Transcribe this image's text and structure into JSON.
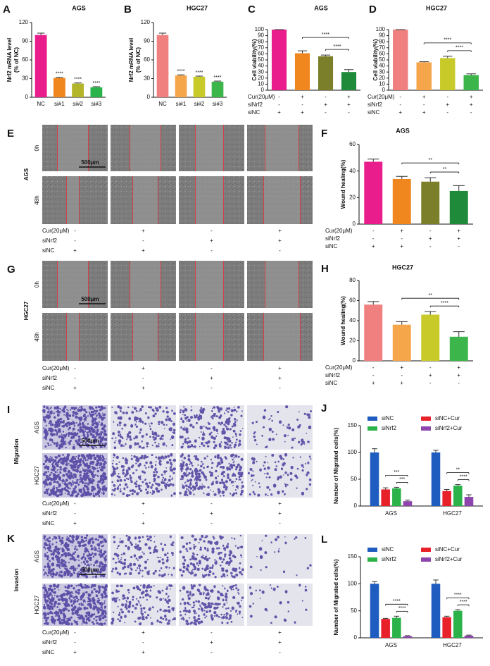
{
  "chart_data": [
    {
      "type": "bar",
      "label": "A",
      "title": "AGS",
      "ylabel": [
        "Nrf2 mRNA level",
        "(% of NC)"
      ],
      "categories": [
        "NC",
        "si#1",
        "si#2",
        "si#3"
      ],
      "values": [
        100,
        31,
        22,
        16
      ],
      "errors": [
        3,
        1,
        1,
        1
      ],
      "annotations": [
        null,
        "****",
        "****",
        "****"
      ],
      "colors": [
        "#e91e8c",
        "#f0861e",
        "#b3b52a",
        "#2ab34a"
      ],
      "ylim": [
        0,
        120
      ],
      "yticks": [
        0,
        30,
        60,
        90,
        120
      ]
    },
    {
      "type": "bar",
      "label": "B",
      "title": "HGC27",
      "ylabel": [
        "Nrf2 mRNA level",
        "(% of NC)"
      ],
      "categories": [
        "NC",
        "si#1",
        "si#2",
        "si#3"
      ],
      "values": [
        100,
        35,
        33,
        25
      ],
      "errors": [
        3,
        1,
        1,
        1
      ],
      "annotations": [
        null,
        "****",
        "****",
        "****"
      ],
      "colors": [
        "#f08080",
        "#f5a54a",
        "#c8ca2a",
        "#3cb54a"
      ],
      "ylim": [
        0,
        120
      ],
      "yticks": [
        0,
        30,
        60,
        90,
        120
      ]
    },
    {
      "type": "bar",
      "label": "C",
      "title": "AGS",
      "ylabel": [
        "Cell viability(%)"
      ],
      "values": [
        100,
        61,
        56,
        30
      ],
      "errors": [
        0,
        4,
        2,
        4
      ],
      "colors": [
        "#e91e8c",
        "#f0861e",
        "#7b7f2a",
        "#1e8a3a"
      ],
      "treatments": [
        {
          "name": "Cur(20μM)",
          "signs": [
            "-",
            "+",
            "-",
            "+"
          ]
        },
        {
          "name": "siNrf2",
          "signs": [
            "-",
            "-",
            "+",
            "+"
          ]
        },
        {
          "name": "siNC",
          "signs": [
            "+",
            "+",
            "-",
            "-"
          ]
        }
      ],
      "significance": [
        "****",
        "****"
      ],
      "ylim": [
        0,
        100
      ],
      "yticks": [
        0,
        10,
        20,
        30,
        40,
        50,
        60,
        70,
        80,
        90,
        100
      ]
    },
    {
      "type": "bar",
      "label": "D",
      "title": "HGC27",
      "ylabel": [
        "Cell viability(%)"
      ],
      "values": [
        100,
        46,
        53,
        25
      ],
      "errors": [
        0,
        1,
        3,
        2
      ],
      "colors": [
        "#f08080",
        "#f5a54a",
        "#c8ca2a",
        "#3cb54a"
      ],
      "treatments": [
        {
          "name": "Cur(20μM)",
          "signs": [
            "-",
            "+",
            "-",
            "+"
          ]
        },
        {
          "name": "siNrf2",
          "signs": [
            "-",
            "-",
            "+",
            "+"
          ]
        },
        {
          "name": "siNC",
          "signs": [
            "+",
            "+",
            "-",
            "-"
          ]
        }
      ],
      "significance": [
        "****",
        "****"
      ],
      "ylim": [
        0,
        100
      ],
      "yticks": [
        0,
        10,
        20,
        30,
        40,
        50,
        60,
        70,
        80,
        90,
        100
      ]
    },
    {
      "type": "bar",
      "label": "F",
      "title": "AGS",
      "ylabel": [
        "Wound healing(%)"
      ],
      "values": [
        47,
        34,
        32,
        25
      ],
      "errors": [
        2,
        2,
        3,
        4
      ],
      "colors": [
        "#e91e8c",
        "#f0861e",
        "#7b7f2a",
        "#1e8a3a"
      ],
      "treatments": [
        {
          "name": "Cur(20μM)",
          "signs": [
            "-",
            "+",
            "-",
            "+"
          ]
        },
        {
          "name": "siNrf2",
          "signs": [
            "-",
            "-",
            "+",
            "+"
          ]
        },
        {
          "name": "siNC",
          "signs": [
            "+",
            "+",
            "-",
            "-"
          ]
        }
      ],
      "significance": [
        "**",
        "**"
      ],
      "ylim": [
        0,
        60
      ],
      "yticks": [
        0,
        20,
        40,
        60
      ]
    },
    {
      "type": "bar",
      "label": "H",
      "title": "HGC27",
      "ylabel": [
        "Wound healing(%)"
      ],
      "values": [
        56,
        36,
        46,
        24
      ],
      "errors": [
        3,
        3,
        3,
        5
      ],
      "colors": [
        "#f08080",
        "#f5a54a",
        "#c8ca2a",
        "#3cb54a"
      ],
      "treatments": [
        {
          "name": "Cur(20μM)",
          "signs": [
            "-",
            "+",
            "-",
            "+"
          ]
        },
        {
          "name": "siNrf2",
          "signs": [
            "-",
            "-",
            "+",
            "+"
          ]
        },
        {
          "name": "siNC",
          "signs": [
            "+",
            "+",
            "-",
            "-"
          ]
        }
      ],
      "significance": [
        "**",
        "****"
      ],
      "ylim": [
        0,
        80
      ],
      "yticks": [
        0,
        20,
        40,
        60,
        80
      ]
    },
    {
      "type": "grouped_bar",
      "label": "J",
      "ylabel": [
        "Number of Migrated cells(%)"
      ],
      "categories": [
        "AGS",
        "HGC27"
      ],
      "series": [
        {
          "name": "siNC",
          "color": "#1f5cbf",
          "values": [
            100,
            100
          ],
          "errors": [
            7,
            4
          ]
        },
        {
          "name": "siNC+Cur",
          "color": "#e8202a",
          "values": [
            31,
            28
          ],
          "errors": [
            3,
            3
          ]
        },
        {
          "name": "siNrf2",
          "color": "#2bb34a",
          "values": [
            33,
            38
          ],
          "errors": [
            2,
            2
          ]
        },
        {
          "name": "siNrf2+Cur",
          "color": "#8e44ad",
          "values": [
            9,
            17
          ],
          "errors": [
            2,
            4
          ]
        }
      ],
      "significance": [
        [
          "***",
          "***"
        ],
        [
          "**",
          "****"
        ]
      ],
      "ylim": [
        0,
        150
      ],
      "yticks": [
        0,
        50,
        100,
        150
      ]
    },
    {
      "type": "grouped_bar",
      "label": "L",
      "ylabel": [
        "Number of Migrated cells(%)"
      ],
      "categories": [
        "AGS",
        "HGC27"
      ],
      "series": [
        {
          "name": "siNC",
          "color": "#1f5cbf",
          "values": [
            100,
            100
          ],
          "errors": [
            4,
            7
          ]
        },
        {
          "name": "siNC+Cur",
          "color": "#e8202a",
          "values": [
            35,
            38
          ],
          "errors": [
            1,
            2
          ]
        },
        {
          "name": "siNrf2",
          "color": "#2bb34a",
          "values": [
            37,
            50
          ],
          "errors": [
            3,
            2
          ]
        },
        {
          "name": "siNrf2+Cur",
          "color": "#8e44ad",
          "values": [
            3,
            4
          ],
          "errors": [
            1,
            1
          ]
        }
      ],
      "significance": [
        [
          "****",
          "****"
        ],
        [
          "****",
          "****"
        ]
      ],
      "ylim": [
        0,
        150
      ],
      "yticks": [
        0,
        50,
        100,
        150
      ]
    }
  ],
  "image_panels": [
    {
      "label": "E",
      "cell_line": "AGS",
      "rows": [
        "0h",
        "48h"
      ],
      "scale_bar": "500μm",
      "treatments": [
        {
          "name": "Cur(20μM)",
          "signs": [
            "-",
            "+",
            "-",
            "+"
          ]
        },
        {
          "name": "siNrf2",
          "signs": [
            "-",
            "-",
            "+",
            "+"
          ]
        },
        {
          "name": "siNC",
          "signs": [
            "+",
            "+",
            "-",
            "-"
          ]
        }
      ]
    },
    {
      "label": "G",
      "cell_line": "HGC27",
      "rows": [
        "0h",
        "48h"
      ],
      "scale_bar": "500μm",
      "treatments": [
        {
          "name": "Cur(20μM)",
          "signs": [
            "-",
            "+",
            "-",
            "+"
          ]
        },
        {
          "name": "siNrf2",
          "signs": [
            "-",
            "-",
            "+",
            "+"
          ]
        },
        {
          "name": "siNC",
          "signs": [
            "+",
            "+",
            "-",
            "-"
          ]
        }
      ]
    },
    {
      "label": "I",
      "assay": "Migration",
      "rows": [
        "AGS",
        "HGC27"
      ],
      "scale_bar": "500μm",
      "treatments": [
        {
          "name": "Cur(20μM)",
          "signs": [
            "-",
            "+",
            "-",
            "+"
          ]
        },
        {
          "name": "siNrf2",
          "signs": [
            "-",
            "-",
            "+",
            "+"
          ]
        },
        {
          "name": "siNC",
          "signs": [
            "+",
            "+",
            "-",
            "-"
          ]
        }
      ]
    },
    {
      "label": "K",
      "assay": "Invasion",
      "rows": [
        "AGS",
        "HGC27"
      ],
      "scale_bar": "500μm",
      "treatments": [
        {
          "name": "Cur(20μM)",
          "signs": [
            "-",
            "+",
            "-",
            "+"
          ]
        },
        {
          "name": "siNrf2",
          "signs": [
            "-",
            "-",
            "+",
            "+"
          ]
        },
        {
          "name": "siNC",
          "signs": [
            "+",
            "+",
            "-",
            "-"
          ]
        }
      ]
    }
  ]
}
